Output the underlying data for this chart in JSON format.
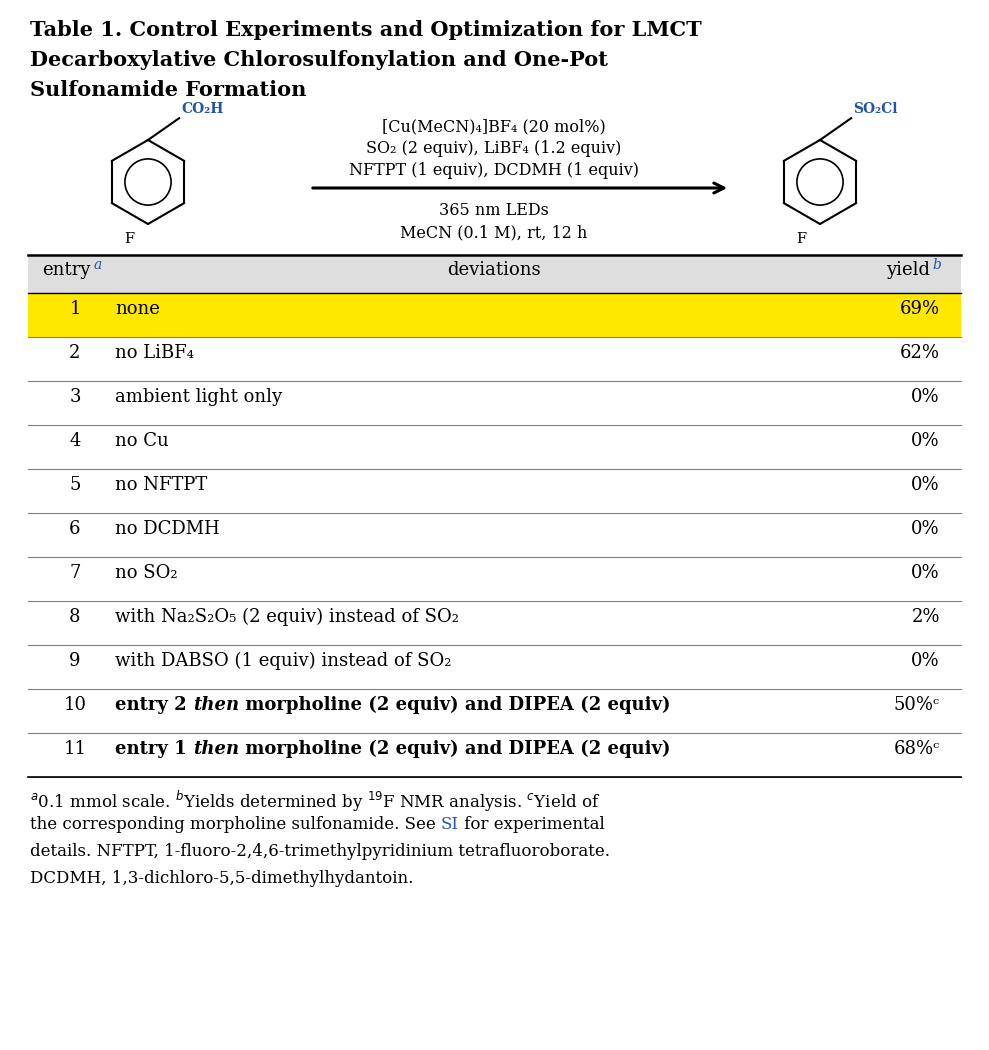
{
  "title_line1": "Table 1. Control Experiments and Optimization for LMCT",
  "title_line2": "Decarboxylative Chlorosulfonylation and One-Pot",
  "title_line3": "Sulfonamide Formation",
  "reaction_line1": "[Cu(MeCN)₄]BF₄ (20 mol%)",
  "reaction_line2": "SO₂ (2 equiv), LiBF₄ (1.2 equiv)",
  "reaction_line3": "NFTPT (1 equiv), DCDMH (1 equiv)",
  "reaction_line4": "365 nm LEDs",
  "reaction_line5": "MeCN (0.1 M), rt, 12 h",
  "entries": [
    {
      "num": "1",
      "deviation": "none",
      "yield": "69%",
      "highlight": true,
      "bold": false,
      "special": false
    },
    {
      "num": "2",
      "deviation": "no LiBF₄",
      "yield": "62%",
      "highlight": false,
      "bold": false,
      "special": false
    },
    {
      "num": "3",
      "deviation": "ambient light only",
      "yield": "0%",
      "highlight": false,
      "bold": false,
      "special": false
    },
    {
      "num": "4",
      "deviation": "no Cu",
      "yield": "0%",
      "highlight": false,
      "bold": false,
      "special": false
    },
    {
      "num": "5",
      "deviation": "no NFTPT",
      "yield": "0%",
      "highlight": false,
      "bold": false,
      "special": false
    },
    {
      "num": "6",
      "deviation": "no DCDMH",
      "yield": "0%",
      "highlight": false,
      "bold": false,
      "special": false
    },
    {
      "num": "7",
      "deviation": "no SO₂",
      "yield": "0%",
      "highlight": false,
      "bold": false,
      "special": false
    },
    {
      "num": "8",
      "deviation": "with Na₂S₂O₅ (2 equiv) instead of SO₂",
      "yield": "2%",
      "highlight": false,
      "bold": false,
      "special": false
    },
    {
      "num": "9",
      "deviation": "with DABSO (1 equiv) instead of SO₂",
      "yield": "0%",
      "highlight": false,
      "bold": false,
      "special": false
    },
    {
      "num": "10",
      "deviation_parts": [
        "entry 2 ",
        "then",
        " morpholine (2 equiv) and DIPEA (2 equiv)"
      ],
      "yield": "50%ᶜ",
      "highlight": false,
      "bold": true,
      "special": true
    },
    {
      "num": "11",
      "deviation_parts": [
        "entry 1 ",
        "then",
        " morpholine (2 equiv) and DIPEA (2 equiv)"
      ],
      "yield": "68%ᶜ",
      "highlight": false,
      "bold": true,
      "special": true
    }
  ],
  "highlight_color": "#FFE800",
  "header_bg": "#DEDEDE",
  "bg_color": "#FFFFFF",
  "text_color": "#000000",
  "blue_color": "#2255AA",
  "SI_color": "#2255AA",
  "title_fontsize": 15,
  "body_fontsize": 13,
  "small_fontsize": 10,
  "footnote_fontsize": 12
}
